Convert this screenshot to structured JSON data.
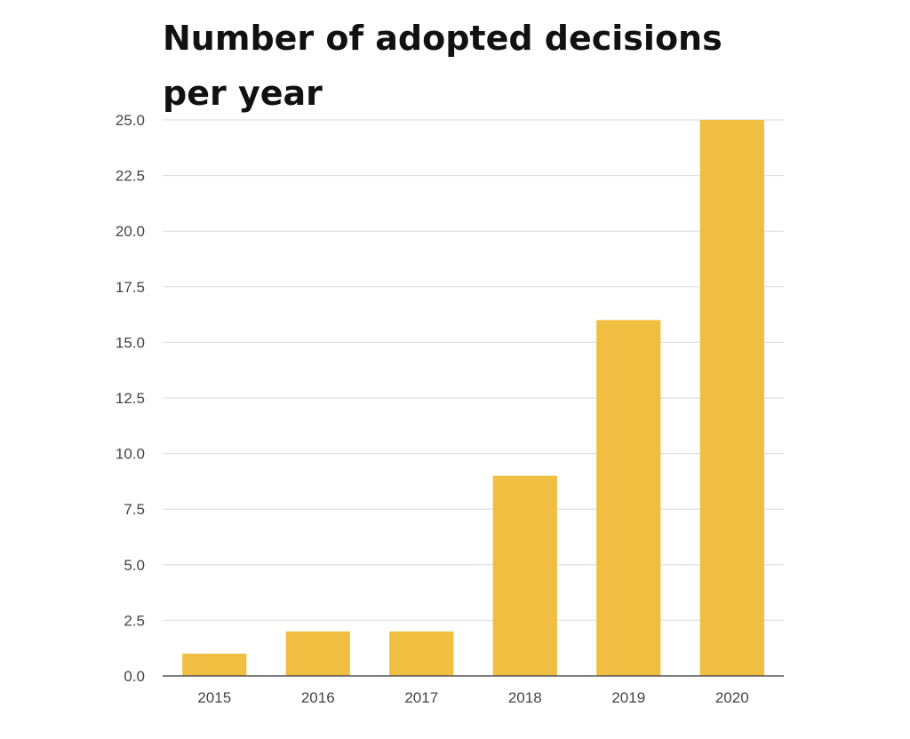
{
  "chart_data": {
    "type": "bar",
    "title": "Number of adopted decisions per year",
    "xlabel": "",
    "ylabel": "",
    "categories": [
      "2015",
      "2016",
      "2017",
      "2018",
      "2019",
      "2020"
    ],
    "values": [
      1,
      2,
      2,
      9,
      16,
      25
    ],
    "ylim": [
      0,
      25
    ],
    "yticks": [
      "0.0",
      "2.5",
      "5.0",
      "7.5",
      "10.0",
      "12.5",
      "15.0",
      "17.5",
      "20.0",
      "22.5",
      "25.0"
    ],
    "grid": true,
    "legend": "none",
    "bar_color": "#f0be41",
    "grid_color": "#d9d9d9",
    "axis_color": "#555555"
  }
}
